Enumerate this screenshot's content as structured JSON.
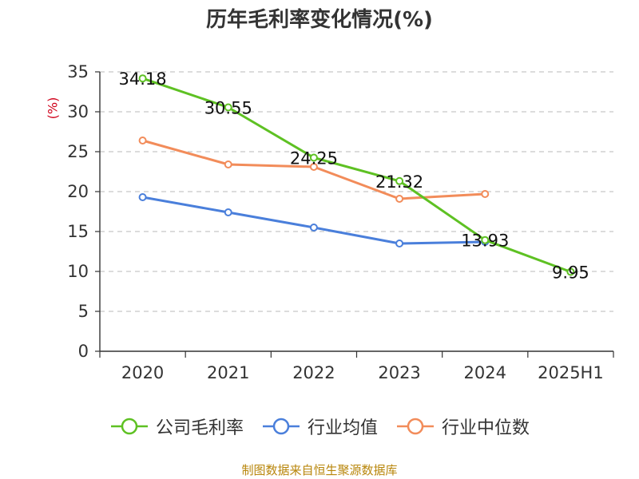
{
  "title": "历年毛利率变化情况(%)",
  "unit_label": "(%)",
  "source": "制图数据来自恒生聚源数据库",
  "chart_data": {
    "type": "line",
    "title": "历年毛利率变化情况(%)",
    "ylabel": "(%)",
    "xlabel": "",
    "categories": [
      "2020",
      "2021",
      "2022",
      "2023",
      "2024",
      "2025H1"
    ],
    "ylim": [
      0,
      35
    ],
    "yticks": [
      0,
      5,
      10,
      15,
      20,
      25,
      30,
      35
    ],
    "grid": true,
    "legend_position": "bottom",
    "series": [
      {
        "name": "公司毛利率",
        "color": "#5ec123",
        "values": [
          34.18,
          30.55,
          24.25,
          21.32,
          13.93,
          9.95
        ],
        "labels": [
          "34.18",
          "30.55",
          "24.25",
          "21.32",
          "13.93",
          "9.95"
        ]
      },
      {
        "name": "行业均值",
        "color": "#4a7fdb",
        "values": [
          19.3,
          17.4,
          15.5,
          13.5,
          13.7,
          null
        ],
        "labels": []
      },
      {
        "name": "行业中位数",
        "color": "#f28c5a",
        "values": [
          26.4,
          23.4,
          23.1,
          19.1,
          19.7,
          null
        ],
        "labels": []
      }
    ]
  }
}
